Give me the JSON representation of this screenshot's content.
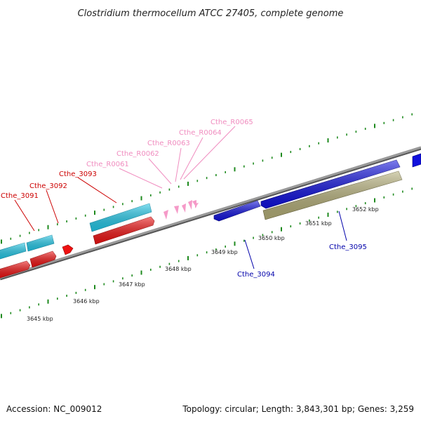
{
  "title": "Clostridium thermocellum ATCC 27405, complete genome",
  "footer": {
    "accession": "Accession: NC_009012",
    "topology": "Topology: circular; Length: 3,843,301 bp; Genes: 3,259"
  },
  "colors": {
    "backbone": "#8a8a8a",
    "tick": "#1e8a1e",
    "cyan_gene": "#22c8e8",
    "red_gene": "#ee1111",
    "blue_gene": "#1111dd",
    "khaki_gene": "#b4ae78",
    "pink_rna": "#f59ac8"
  },
  "scale_labels": [
    "3645 kbp",
    "3646 kbp",
    "3647 kbp",
    "3648 kbp",
    "3649 kbp",
    "3650 kbp",
    "3651 kbp",
    "3652 kbp"
  ],
  "gene_labels": [
    {
      "text": "Cthe_3091",
      "color": "#cc0000"
    },
    {
      "text": "Cthe_3092",
      "color": "#cc0000"
    },
    {
      "text": "Cthe_3093",
      "color": "#cc0000"
    },
    {
      "text": "Cthe_R0061",
      "color": "#f08cbf"
    },
    {
      "text": "Cthe_R0062",
      "color": "#f08cbf"
    },
    {
      "text": "Cthe_R0063",
      "color": "#f08cbf"
    },
    {
      "text": "Cthe_R0064",
      "color": "#f08cbf"
    },
    {
      "text": "Cthe_R0065",
      "color": "#f08cbf"
    },
    {
      "text": "Cthe_3094",
      "color": "#0000aa"
    },
    {
      "text": "Cthe_3095",
      "color": "#0000aa"
    }
  ]
}
